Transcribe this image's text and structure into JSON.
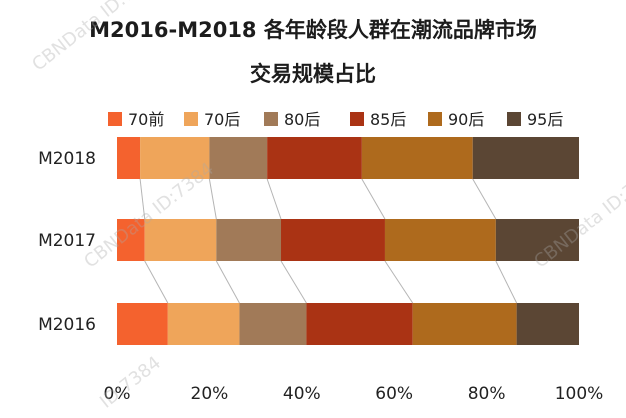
{
  "chart_data": {
    "type": "bar",
    "orientation": "horizontal",
    "stacked": "percent",
    "title_line1": "M2016-M2018 各年龄段人群在潮流品牌市场",
    "title_line2": "交易规模占比",
    "categories": [
      "M2018",
      "M2017",
      "M2016"
    ],
    "series": [
      {
        "name": "70前",
        "color": "#F4622E",
        "values": [
          5,
          6,
          11
        ]
      },
      {
        "name": "70后",
        "color": "#EFA55A",
        "values": [
          15,
          15.5,
          15.5
        ]
      },
      {
        "name": "80后",
        "color": "#A17A58",
        "values": [
          12.5,
          14,
          14.5
        ]
      },
      {
        "name": "85后",
        "color": "#AA3314",
        "values": [
          20.5,
          22.5,
          23
        ]
      },
      {
        "name": "90后",
        "color": "#AE6A1D",
        "values": [
          24,
          24,
          22.5
        ]
      },
      {
        "name": "95后",
        "color": "#5B4634",
        "values": [
          23,
          18,
          13.5
        ]
      }
    ],
    "x_ticks": [
      "0%",
      "20%",
      "40%",
      "60%",
      "80%",
      "100%"
    ],
    "xlim": [
      0,
      100
    ],
    "legend_position": "top",
    "grid": false
  },
  "watermarks": [
    "CBNData ID:7384",
    "CBNData ID:7384",
    "ID:7384",
    "CBNData ID:7384"
  ]
}
